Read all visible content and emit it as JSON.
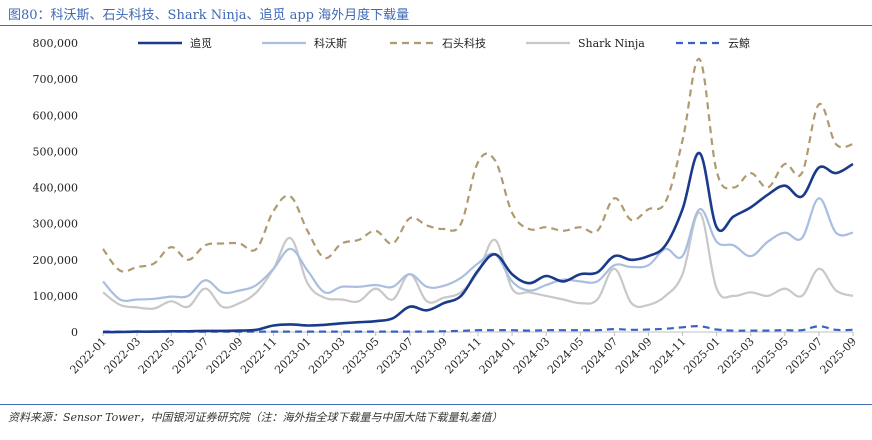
{
  "header": {
    "title": "图80：科沃斯、石头科技、Shark Ninja、追觅 app 海外月度下载量"
  },
  "footer": {
    "source": "资料来源：Sensor Tower，中国银河证券研究院（注：海外指全球下载量与中国大陆下载量轧差值）"
  },
  "chart_data": {
    "type": "line",
    "title": "图80：科沃斯、石头科技、Shark Ninja、追觅 app 海外月度下载量",
    "xlabel": "",
    "ylabel": "",
    "ylim": [
      0,
      800000
    ],
    "yticks": [
      "0",
      "100,000",
      "200,000",
      "300,000",
      "400,000",
      "500,000",
      "600,000",
      "700,000",
      "800,000"
    ],
    "x": [
      "2022-01",
      "2022-02",
      "2022-03",
      "2022-04",
      "2022-05",
      "2022-06",
      "2022-07",
      "2022-08",
      "2022-09",
      "2022-10",
      "2022-11",
      "2022-12",
      "2023-01",
      "2023-02",
      "2023-03",
      "2023-04",
      "2023-05",
      "2023-06",
      "2023-07",
      "2023-08",
      "2023-09",
      "2023-10",
      "2023-11",
      "2023-12",
      "2024-01",
      "2024-02",
      "2024-03",
      "2024-04",
      "2024-05",
      "2024-06",
      "2024-07",
      "2024-08",
      "2024-09",
      "2024-10",
      "2024-11",
      "2024-12",
      "2025-01",
      "2025-02",
      "2025-03",
      "2025-04",
      "2025-05",
      "2025-06",
      "2025-07",
      "2025-08",
      "2025-09"
    ],
    "xtick_labels": [
      "2022-01",
      "2022-03",
      "2022-05",
      "2022-07",
      "2022-09",
      "2022-11",
      "2023-01",
      "2023-03",
      "2023-05",
      "2023-07",
      "2023-09",
      "2023-11",
      "2024-01",
      "2024-03",
      "2024-05",
      "2024-07",
      "2024-09",
      "2024-11",
      "2025-01",
      "2025-03",
      "2025-05",
      "2025-07",
      "2025-09"
    ],
    "legend_position": "top",
    "series": [
      {
        "name": "追觅",
        "color": "#1a3a8c",
        "style": "solid",
        "values": [
          0,
          0,
          1000,
          1000,
          2000,
          2000,
          3000,
          3000,
          4000,
          6000,
          18000,
          21000,
          18000,
          20000,
          24000,
          27000,
          30000,
          38000,
          70000,
          60000,
          80000,
          100000,
          170000,
          215000,
          160000,
          135000,
          155000,
          140000,
          160000,
          165000,
          210000,
          200000,
          210000,
          240000,
          340000,
          495000,
          290000,
          320000,
          345000,
          380000,
          405000,
          375000,
          455000,
          440000,
          465000
        ]
      },
      {
        "name": "科沃斯",
        "color": "#a9bee0",
        "style": "solid",
        "values": [
          140000,
          90000,
          90000,
          92000,
          98000,
          100000,
          143000,
          110000,
          115000,
          130000,
          175000,
          230000,
          170000,
          110000,
          125000,
          125000,
          130000,
          125000,
          160000,
          125000,
          128000,
          150000,
          190000,
          215000,
          140000,
          115000,
          130000,
          145000,
          140000,
          140000,
          185000,
          180000,
          185000,
          230000,
          210000,
          340000,
          250000,
          240000,
          210000,
          250000,
          275000,
          260000,
          370000,
          275000,
          275000
        ]
      },
      {
        "name": "石头科技",
        "color": "#b09a70",
        "style": "dash",
        "values": [
          230000,
          170000,
          180000,
          190000,
          235000,
          200000,
          240000,
          245000,
          245000,
          230000,
          335000,
          375000,
          280000,
          205000,
          245000,
          255000,
          280000,
          245000,
          315000,
          295000,
          285000,
          300000,
          470000,
          475000,
          330000,
          285000,
          290000,
          280000,
          290000,
          280000,
          370000,
          310000,
          340000,
          360000,
          530000,
          755000,
          445000,
          400000,
          440000,
          400000,
          465000,
          440000,
          630000,
          520000,
          520000
        ]
      },
      {
        "name": "Shark Ninja",
        "color": "#c8c8c8",
        "style": "solid",
        "values": [
          110000,
          75000,
          68000,
          65000,
          85000,
          70000,
          120000,
          70000,
          80000,
          110000,
          175000,
          260000,
          135000,
          95000,
          90000,
          85000,
          120000,
          90000,
          160000,
          85000,
          95000,
          110000,
          165000,
          255000,
          120000,
          110000,
          100000,
          90000,
          80000,
          90000,
          175000,
          80000,
          75000,
          100000,
          160000,
          330000,
          120000,
          100000,
          110000,
          100000,
          120000,
          100000,
          175000,
          115000,
          100000
        ]
      },
      {
        "name": "云鲸",
        "color": "#3a62c4",
        "style": "dash",
        "values": [
          1000,
          1000,
          1000,
          1000,
          1000,
          1000,
          1000,
          1000,
          1000,
          1000,
          1000,
          1000,
          1000,
          1000,
          1000,
          1000,
          1000,
          1000,
          1000,
          1000,
          2000,
          3000,
          5000,
          5000,
          5000,
          4000,
          5000,
          5000,
          5000,
          5000,
          8000,
          6000,
          7000,
          9000,
          13000,
          16000,
          7000,
          4000,
          4000,
          4000,
          5000,
          5000,
          16000,
          6000,
          6000
        ]
      }
    ]
  }
}
